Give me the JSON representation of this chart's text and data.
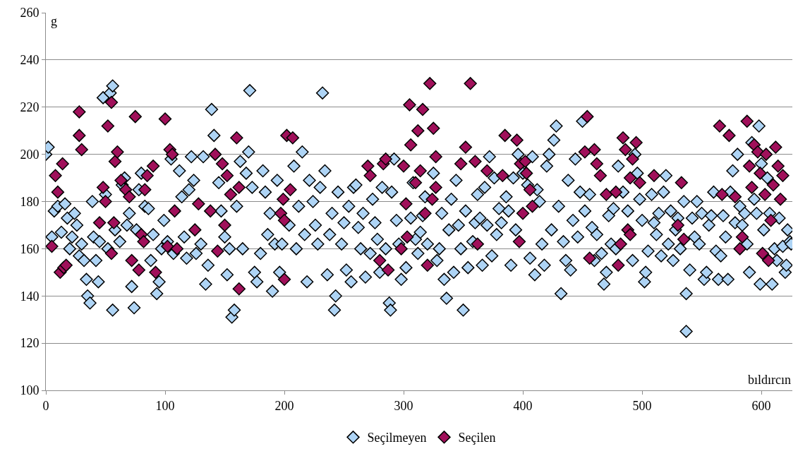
{
  "chart_data": {
    "type": "scatter",
    "xlabel": "bıldırcın",
    "ylabel": "g",
    "xlim": [
      0,
      626
    ],
    "xticks": [
      0,
      100,
      200,
      300,
      400,
      500,
      600
    ],
    "ylim": [
      100,
      260
    ],
    "yticks": [
      100,
      120,
      140,
      160,
      180,
      200,
      220,
      240,
      260
    ],
    "grid": "y",
    "legend": "bottom",
    "marker": "diamond",
    "series": [
      {
        "name": "Seçilmeyen",
        "color": "#aed4f5",
        "x": [
          0,
          2,
          5,
          7,
          10,
          13,
          16,
          18,
          20,
          22,
          24,
          26,
          28,
          30,
          32,
          34,
          35,
          37,
          39,
          40,
          42,
          44,
          45,
          48,
          50,
          52,
          54,
          56,
          56,
          58,
          62,
          64,
          66,
          68,
          70,
          72,
          74,
          76,
          78,
          80,
          83,
          86,
          88,
          90,
          93,
          95,
          97,
          99,
          102,
          105,
          107,
          112,
          114,
          116,
          118,
          120,
          122,
          124,
          126,
          130,
          132,
          134,
          136,
          139,
          141,
          145,
          147,
          150,
          152,
          154,
          156,
          158,
          160,
          163,
          165,
          168,
          170,
          171,
          173,
          175,
          177,
          180,
          182,
          184,
          186,
          188,
          190,
          192,
          194,
          196,
          198,
          204,
          208,
          210,
          212,
          215,
          217,
          219,
          221,
          224,
          226,
          228,
          230,
          232,
          234,
          236,
          238,
          240,
          242,
          243,
          245,
          248,
          250,
          252,
          254,
          256,
          258,
          260,
          262,
          264,
          266,
          268,
          272,
          274,
          276,
          278,
          280,
          282,
          285,
          288,
          289,
          290,
          292,
          294,
          296,
          298,
          302,
          306,
          308,
          310,
          312,
          314,
          316,
          318,
          320,
          325,
          328,
          330,
          332,
          334,
          336,
          338,
          340,
          342,
          344,
          346,
          348,
          350,
          352,
          354,
          358,
          360,
          362,
          364,
          366,
          368,
          370,
          372,
          374,
          376,
          378,
          380,
          382,
          386,
          388,
          390,
          392,
          394,
          396,
          400,
          404,
          406,
          408,
          410,
          412,
          414,
          416,
          418,
          420,
          422,
          424,
          426,
          428,
          430,
          432,
          434,
          436,
          438,
          440,
          442,
          444,
          446,
          448,
          450,
          452,
          456,
          458,
          460,
          462,
          466,
          468,
          470,
          472,
          474,
          476,
          478,
          480,
          484,
          488,
          492,
          494,
          496,
          498,
          500,
          502,
          503,
          505,
          508,
          510,
          512,
          514,
          516,
          518,
          520,
          522,
          524,
          526,
          528,
          530,
          532,
          535,
          537,
          537,
          540,
          542,
          544,
          546,
          548,
          550,
          552,
          554,
          556,
          558,
          560,
          562,
          564,
          566,
          568,
          570,
          572,
          574,
          576,
          578,
          580,
          582,
          584,
          586,
          588,
          590,
          592,
          594,
          596,
          598,
          599,
          600,
          602,
          605,
          607,
          609,
          611,
          613,
          615,
          618,
          620,
          621,
          622,
          624,
          625
        ],
        "values": [
          200,
          203,
          165,
          176,
          178,
          167,
          179,
          173,
          160,
          165,
          175,
          170,
          157,
          162,
          155,
          147,
          140,
          137,
          180,
          165,
          155,
          146,
          163,
          224,
          183,
          160,
          226,
          229,
          134,
          168,
          163,
          187,
          190,
          170,
          175,
          144,
          135,
          168,
          185,
          192,
          178,
          177,
          155,
          166,
          141,
          146,
          160,
          172,
          163,
          198,
          158,
          193,
          182,
          165,
          156,
          185,
          199,
          189,
          158,
          162,
          199,
          145,
          153,
          219,
          208,
          188,
          176,
          165,
          149,
          160,
          131,
          134,
          178,
          197,
          160,
          192,
          201,
          227,
          186,
          150,
          146,
          158,
          193,
          184,
          166,
          175,
          142,
          162,
          189,
          150,
          162,
          170,
          195,
          160,
          178,
          201,
          166,
          146,
          189,
          180,
          170,
          162,
          186,
          226,
          193,
          149,
          166,
          175,
          134,
          140,
          184,
          162,
          171,
          151,
          178,
          146,
          186,
          187,
          169,
          160,
          175,
          148,
          158,
          181,
          171,
          164,
          150,
          186,
          160,
          137,
          134,
          184,
          198,
          172,
          162,
          147,
          152,
          173,
          188,
          164,
          158,
          167,
          174,
          182,
          162,
          192,
          155,
          160,
          175,
          147,
          139,
          168,
          181,
          150,
          189,
          170,
          160,
          134,
          176,
          152,
          163,
          171,
          183,
          173,
          153,
          186,
          170,
          199,
          157,
          190,
          166,
          177,
          171,
          182,
          176,
          153,
          190,
          168,
          200,
          192,
          187,
          156,
          199,
          149,
          185,
          180,
          162,
          153,
          195,
          200,
          168,
          206,
          212,
          178,
          141,
          163,
          155,
          189,
          151,
          172,
          198,
          165,
          184,
          214,
          176,
          183,
          169,
          155,
          166,
          158,
          145,
          150,
          174,
          162,
          177,
          160,
          195,
          184,
          176,
          155,
          200,
          192,
          181,
          172,
          146,
          150,
          159,
          183,
          171,
          166,
          175,
          157,
          184,
          191,
          162,
          176,
          155,
          168,
          173,
          160,
          180,
          141,
          125,
          151,
          173,
          165,
          180,
          162,
          175,
          147,
          150,
          170,
          174,
          184,
          159,
          147,
          157,
          174,
          165,
          147,
          184,
          193,
          171,
          200,
          178,
          170,
          175,
          162,
          150,
          205,
          181,
          175,
          212,
          145,
          196,
          168,
          190,
          175,
          145,
          160,
          155,
          173,
          161,
          150,
          153,
          168,
          163,
          162
        ]
      },
      {
        "name": "Seçilen",
        "color": "#a0105a",
        "x": [
          5,
          8,
          10,
          12,
          14,
          15,
          17,
          28,
          28,
          30,
          45,
          48,
          50,
          52,
          55,
          55,
          57,
          58,
          60,
          63,
          67,
          70,
          72,
          75,
          78,
          80,
          82,
          83,
          85,
          90,
          92,
          100,
          102,
          104,
          106,
          108,
          110,
          125,
          128,
          138,
          142,
          144,
          148,
          150,
          152,
          155,
          160,
          162,
          162,
          197,
          199,
          200,
          200,
          202,
          205,
          207,
          270,
          272,
          280,
          283,
          285,
          287,
          298,
          300,
          302,
          303,
          305,
          306,
          310,
          312,
          314,
          316,
          318,
          320,
          322,
          324,
          325,
          327,
          327,
          348,
          352,
          356,
          360,
          362,
          370,
          383,
          385,
          395,
          397,
          398,
          400,
          402,
          403,
          406,
          408,
          452,
          454,
          456,
          460,
          462,
          465,
          470,
          478,
          480,
          482,
          484,
          486,
          488,
          490,
          490,
          492,
          495,
          498,
          510,
          530,
          533,
          535,
          565,
          567,
          573,
          578,
          582,
          584,
          588,
          590,
          592,
          594,
          597,
          599,
          601,
          603,
          604,
          606,
          608,
          610,
          612,
          614,
          616,
          618
        ],
        "values": [
          161,
          191,
          184,
          150,
          196,
          152,
          153,
          218,
          208,
          202,
          171,
          186,
          180,
          212,
          222,
          158,
          171,
          197,
          201,
          189,
          185,
          182,
          155,
          216,
          151,
          166,
          163,
          185,
          191,
          195,
          150,
          215,
          161,
          202,
          200,
          176,
          160,
          168,
          179,
          176,
          200,
          159,
          196,
          170,
          191,
          183,
          207,
          186,
          143,
          175,
          181,
          172,
          147,
          208,
          185,
          207,
          195,
          191,
          155,
          196,
          198,
          151,
          160,
          195,
          179,
          165,
          221,
          204,
          188,
          210,
          193,
          219,
          175,
          153,
          230,
          181,
          211,
          199,
          186,
          196,
          203,
          230,
          197,
          162,
          193,
          191,
          208,
          206,
          163,
          196,
          175,
          197,
          192,
          185,
          178,
          201,
          216,
          156,
          202,
          196,
          191,
          183,
          184,
          153,
          162,
          207,
          202,
          168,
          166,
          190,
          198,
          205,
          188,
          191,
          170,
          188,
          164,
          212,
          183,
          208,
          182,
          160,
          165,
          214,
          195,
          186,
          204,
          201,
          192,
          158,
          183,
          200,
          155,
          172,
          187,
          203,
          195,
          181,
          191
        ]
      }
    ]
  }
}
